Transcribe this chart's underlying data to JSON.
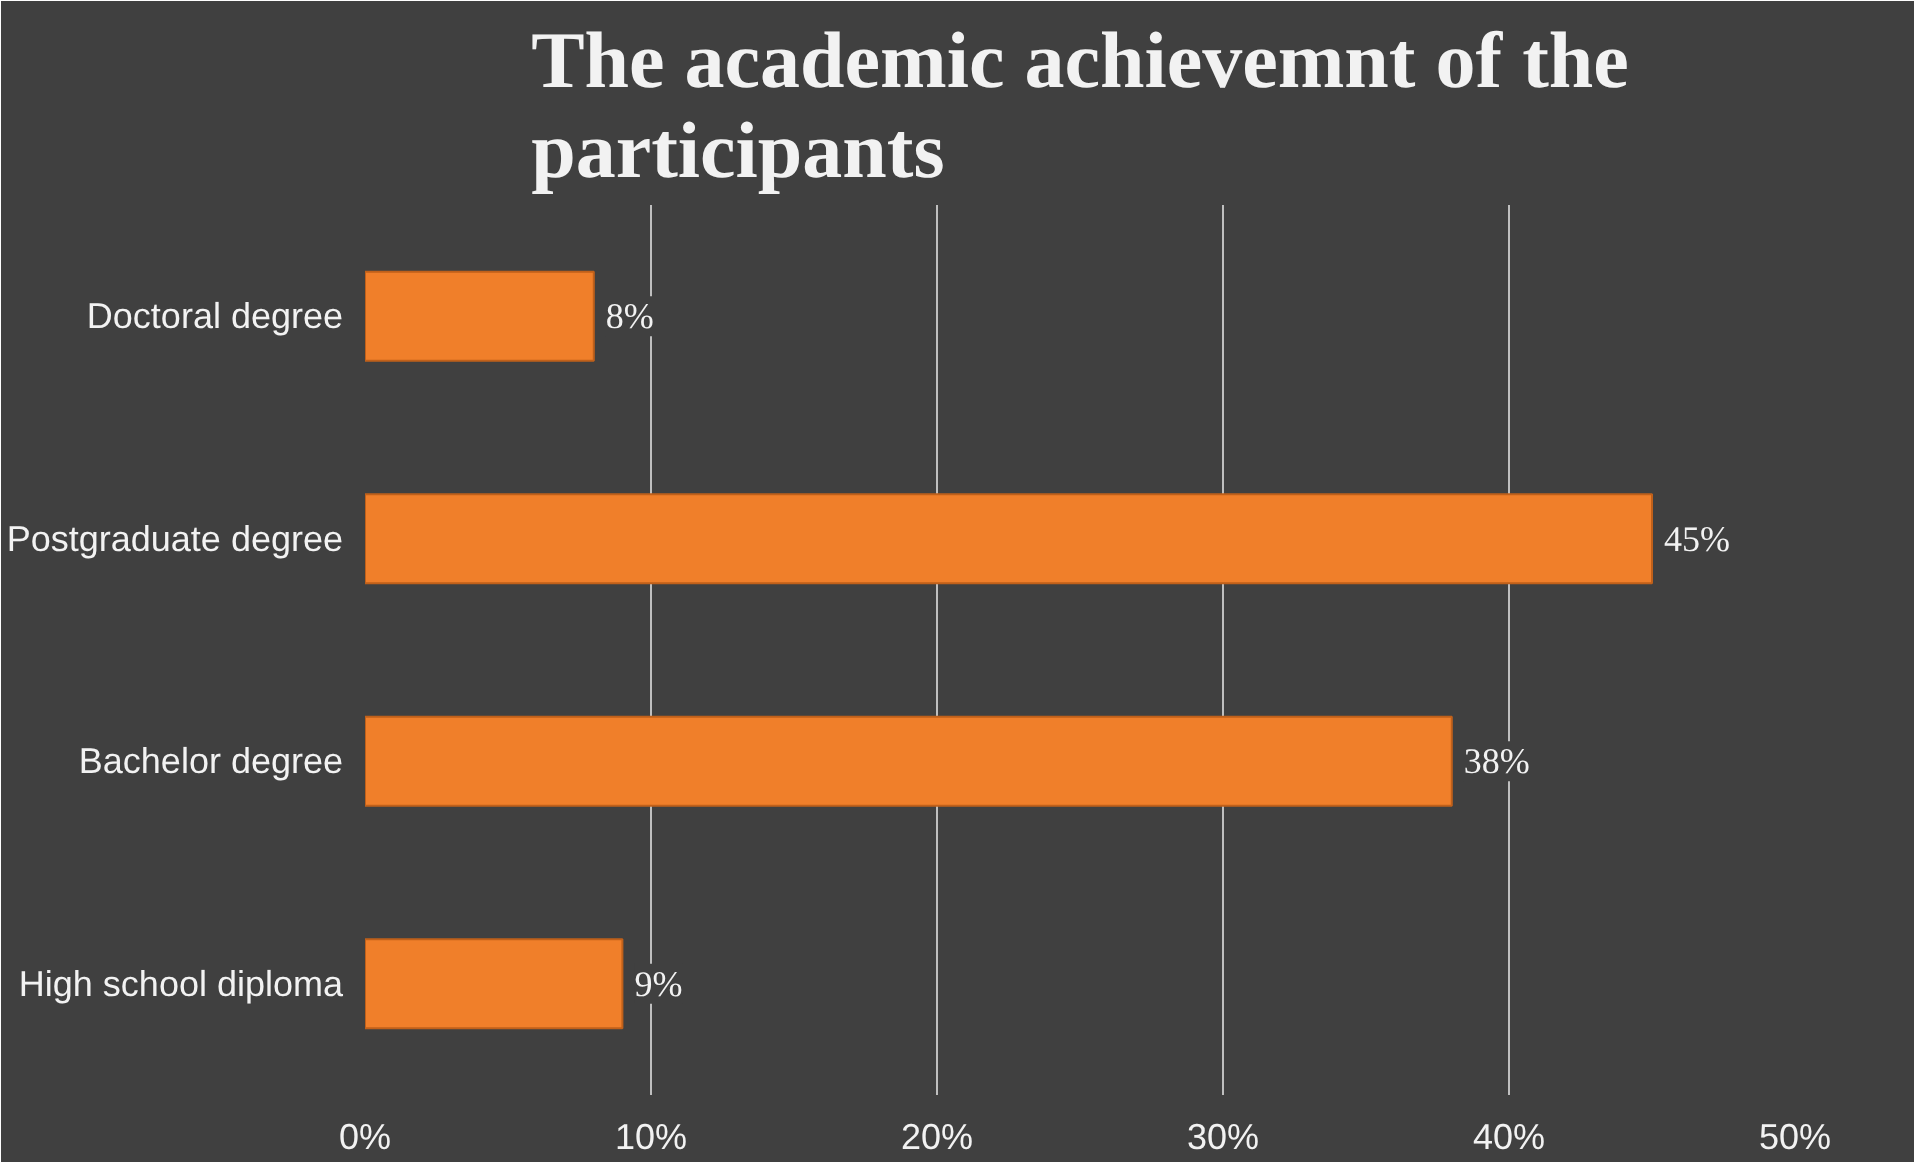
{
  "chart_data": {
    "type": "bar",
    "orientation": "horizontal",
    "title": "The academic achievemnt of the participants",
    "categories": [
      "Doctoral degree",
      "Postgraduate degree",
      "Bachelor degree",
      "High school diploma"
    ],
    "values": [
      8,
      45,
      38,
      9
    ],
    "value_labels": [
      "8%",
      "45%",
      "38%",
      "9%"
    ],
    "color": "#f07f2a",
    "xlim": [
      0,
      50
    ],
    "xticks": [
      {
        "value": 0,
        "label": "0%"
      },
      {
        "value": 10,
        "label": "10%"
      },
      {
        "value": 20,
        "label": "20%"
      },
      {
        "value": 30,
        "label": "30%"
      },
      {
        "value": 40,
        "label": "40%"
      },
      {
        "value": 50,
        "label": "50%"
      }
    ],
    "grid": "x"
  }
}
